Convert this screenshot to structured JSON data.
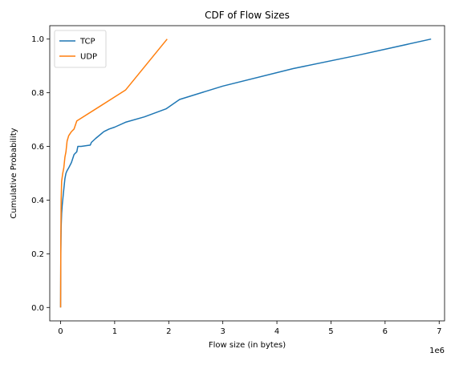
{
  "chart_data": {
    "type": "line",
    "title": "CDF of Flow Sizes",
    "xlabel": "Flow size (in bytes)",
    "ylabel": "Cumulative Probability",
    "x_offset_label": "1e6",
    "xlim": [
      -0.2,
      7.1
    ],
    "ylim": [
      -0.05,
      1.05
    ],
    "xticks": [
      0,
      1,
      2,
      3,
      4,
      5,
      6,
      7
    ],
    "xtick_labels": [
      "0",
      "1",
      "2",
      "3",
      "4",
      "5",
      "6",
      "7"
    ],
    "yticks": [
      0.0,
      0.2,
      0.4,
      0.6,
      0.8,
      1.0
    ],
    "ytick_labels": [
      "0.0",
      "0.2",
      "0.4",
      "0.6",
      "0.8",
      "1.0"
    ],
    "grid": false,
    "legend_position": "top-left",
    "series": [
      {
        "name": "TCP",
        "color": "#1f77b4",
        "x": [
          0,
          0.005,
          0.01,
          0.02,
          0.03,
          0.05,
          0.08,
          0.1,
          0.12,
          0.15,
          0.2,
          0.25,
          0.3,
          0.32,
          0.38,
          0.55,
          0.57,
          0.65,
          0.8,
          0.9,
          1.0,
          1.2,
          1.55,
          1.95,
          2.2,
          3.0,
          4.3,
          5.5,
          6.85
        ],
        "y": [
          0.0,
          0.2,
          0.3,
          0.35,
          0.38,
          0.42,
          0.48,
          0.5,
          0.51,
          0.52,
          0.54,
          0.57,
          0.58,
          0.6,
          0.6,
          0.605,
          0.615,
          0.63,
          0.655,
          0.665,
          0.672,
          0.69,
          0.71,
          0.74,
          0.775,
          0.825,
          0.89,
          0.94,
          1.0
        ]
      },
      {
        "name": "UDP",
        "color": "#ff7f0e",
        "x": [
          0,
          0.005,
          0.01,
          0.02,
          0.04,
          0.06,
          0.08,
          0.1,
          0.12,
          0.15,
          0.2,
          0.25,
          0.3,
          1.2,
          1.97
        ],
        "y": [
          0.0,
          0.25,
          0.4,
          0.47,
          0.5,
          0.52,
          0.56,
          0.58,
          0.62,
          0.64,
          0.655,
          0.665,
          0.695,
          0.81,
          1.0
        ]
      }
    ]
  }
}
